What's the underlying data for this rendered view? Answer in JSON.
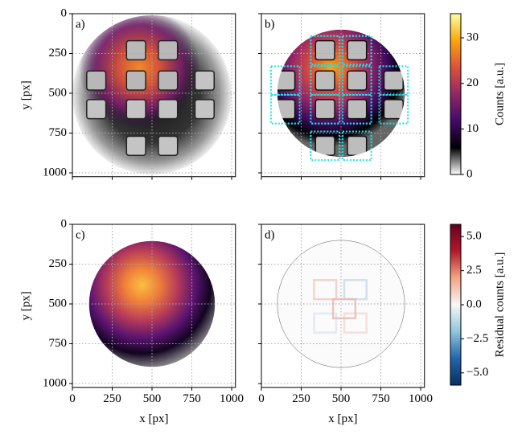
{
  "chart_data": [
    {
      "type": "image",
      "label": "a)",
      "xlim": [
        0,
        1024
      ],
      "ylim": [
        1024,
        0
      ],
      "xticks": [
        0,
        250,
        500,
        750,
        1000
      ],
      "yticks": [
        0,
        250,
        500,
        750,
        1000
      ],
      "ylabel": "y [px]",
      "show_xticklabels": false,
      "show_yticklabels": true,
      "grid": true
    },
    {
      "type": "image",
      "label": "b)",
      "xlim": [
        0,
        1024
      ],
      "ylim": [
        1024,
        0
      ],
      "xticks": [
        0,
        250,
        500,
        750,
        1000
      ],
      "yticks": [
        0,
        250,
        500,
        750,
        1000
      ],
      "show_xticklabels": false,
      "show_yticklabels": false,
      "grid": true
    },
    {
      "type": "image",
      "label": "c)",
      "xlim": [
        0,
        1024
      ],
      "ylim": [
        1024,
        0
      ],
      "xticks": [
        0,
        250,
        500,
        750,
        1000
      ],
      "yticks": [
        0,
        250,
        500,
        750,
        1000
      ],
      "xlabel": "x [px]",
      "ylabel": "y [px]",
      "show_xticklabels": true,
      "show_yticklabels": true,
      "grid": true
    },
    {
      "type": "image",
      "label": "d)",
      "xlim": [
        0,
        1024
      ],
      "ylim": [
        1024,
        0
      ],
      "xticks": [
        0,
        250,
        500,
        750,
        1000
      ],
      "yticks": [
        0,
        250,
        500,
        750,
        1000
      ],
      "xlabel": "x [px]",
      "show_xticklabels": true,
      "show_yticklabels": false,
      "grid": true
    }
  ],
  "colorbars": [
    {
      "label": "Counts [a.u.]",
      "lim": [
        0,
        35.3
      ],
      "ticks": [
        0,
        10,
        20,
        30
      ],
      "colormap": [
        "#ffffff",
        "#000004",
        "#420a68",
        "#932667",
        "#dd513a",
        "#fca50a",
        "#fcffa4"
      ]
    },
    {
      "label": "Residual counts [a.u.]",
      "lim": [
        -5.9,
        5.9
      ],
      "ticks": [
        {
          "value": -5,
          "label": "−5.0"
        },
        {
          "value": -2.5,
          "label": "−2.5"
        },
        {
          "value": 0,
          "label": "0.0"
        },
        {
          "value": 2.5,
          "label": "2.5"
        },
        {
          "value": 5,
          "label": "5.0"
        }
      ],
      "colormap": [
        "#053061",
        "#2166ac",
        "#92c5de",
        "#f7f7f7",
        "#f4a582",
        "#b2182b",
        "#67001f"
      ]
    }
  ]
}
